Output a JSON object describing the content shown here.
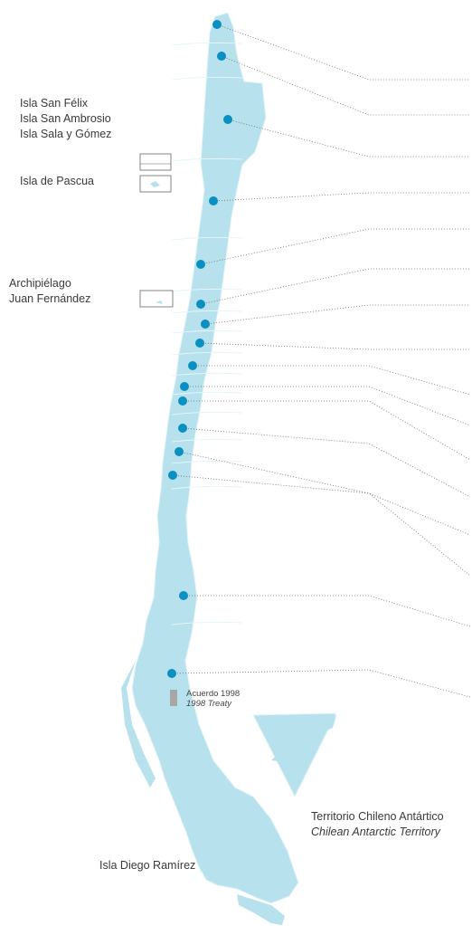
{
  "colors": {
    "land": "#b7e1ec",
    "land_stroke": "#e6f5fa",
    "marker": "#0a8fc2",
    "leader": "#6d6d6d",
    "treaty_zone": "#a7a7a7"
  },
  "labels": {
    "islands_group": [
      "Isla San Félix",
      "Isla San Ambrosio",
      "Isla Sala y Gómez"
    ],
    "pascua": "Isla de Pascua",
    "juan_fernandez": [
      "Archipiélago",
      "Juan Fernández"
    ],
    "treaty": {
      "es": "Acuerdo 1998",
      "en": "1998 Treaty"
    },
    "antarctic": {
      "es": "Territorio Chileno Antártico",
      "en": "Chilean Antarctic Territory"
    },
    "diego_ramirez": "Isla Diego Ramírez"
  },
  "regions": [
    {
      "id": "region-1"
    },
    {
      "id": "region-2"
    },
    {
      "id": "region-3"
    },
    {
      "id": "region-4"
    },
    {
      "id": "region-5"
    },
    {
      "id": "region-6"
    },
    {
      "id": "region-7"
    },
    {
      "id": "region-8"
    },
    {
      "id": "region-9"
    },
    {
      "id": "region-10"
    },
    {
      "id": "region-11"
    },
    {
      "id": "region-12"
    },
    {
      "id": "region-13"
    },
    {
      "id": "region-14"
    },
    {
      "id": "region-15"
    },
    {
      "id": "region-16"
    }
  ]
}
